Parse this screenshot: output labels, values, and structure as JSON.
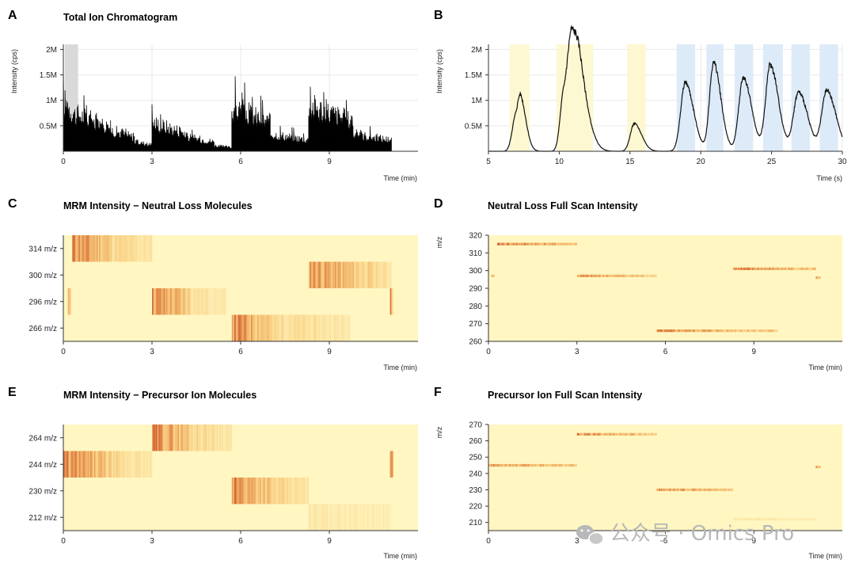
{
  "watermark": "公众号 · Omics Pro",
  "chart_data": [
    {
      "panel": "A",
      "type": "area",
      "title": "Total Ion Chromatogram",
      "xlabel": "Time (min)",
      "ylabel": "Intensity (cps)",
      "xlim": [
        0,
        12
      ],
      "ylim": [
        0,
        2100000
      ],
      "xticks": [
        "0",
        "3",
        "6",
        "9"
      ],
      "yticks": [
        "0.5M",
        "1M",
        "1.5M",
        "2M"
      ],
      "grid": true,
      "highlight_regions": [
        {
          "x": [
            0.05,
            0.5
          ],
          "color": "#d9d9d9"
        }
      ],
      "segments": [
        {
          "x": [
            0.0,
            0.5
          ],
          "level": 1300000
        },
        {
          "x": [
            0.5,
            1.6
          ],
          "level": 950000
        },
        {
          "x": [
            1.6,
            2.4
          ],
          "level": 550000
        },
        {
          "x": [
            2.4,
            3.0
          ],
          "level": 250000
        },
        {
          "x": [
            3.0,
            4.1
          ],
          "level": 750000
        },
        {
          "x": [
            4.1,
            5.1
          ],
          "level": 380000
        },
        {
          "x": [
            5.1,
            5.7
          ],
          "level": 150000
        },
        {
          "x": [
            5.7,
            7.0
          ],
          "level": 1150000
        },
        {
          "x": [
            7.0,
            8.3
          ],
          "level": 450000
        },
        {
          "x": [
            8.3,
            9.8
          ],
          "level": 1200000
        },
        {
          "x": [
            9.8,
            11.1
          ],
          "level": 450000
        }
      ]
    },
    {
      "panel": "B",
      "type": "line",
      "title": "",
      "xlabel": "Time (s)",
      "ylabel": "Intensity (cps)",
      "xlim": [
        5,
        30
      ],
      "ylim": [
        0,
        2100000
      ],
      "xticks": [
        "5",
        "10",
        "15",
        "20",
        "25",
        "30"
      ],
      "yticks": [
        "0.5M",
        "1M",
        "1.5M",
        "2M"
      ],
      "grid": true,
      "highlight_regions": [
        {
          "x": [
            6.5,
            7.9
          ],
          "color": "#fdf7d2"
        },
        {
          "x": [
            9.8,
            12.4
          ],
          "color": "#fdf7d2"
        },
        {
          "x": [
            14.8,
            16.1
          ],
          "color": "#fdf7d2"
        },
        {
          "x": [
            18.3,
            19.6
          ],
          "color": "#ddeaf8"
        },
        {
          "x": [
            20.4,
            21.6
          ],
          "color": "#ddeaf8"
        },
        {
          "x": [
            22.4,
            23.7
          ],
          "color": "#ddeaf8"
        },
        {
          "x": [
            24.4,
            25.8
          ],
          "color": "#ddeaf8"
        },
        {
          "x": [
            26.4,
            27.7
          ],
          "color": "#ddeaf8"
        },
        {
          "x": [
            28.4,
            29.7
          ],
          "color": "#ddeaf8"
        }
      ],
      "peaks": [
        {
          "x": 6.9,
          "y": 650000,
          "w": 0.35
        },
        {
          "x": 7.3,
          "y": 700000,
          "w": 0.3
        },
        {
          "x": 10.3,
          "y": 1100000,
          "w": 0.35
        },
        {
          "x": 10.9,
          "y": 1800000,
          "w": 0.4
        },
        {
          "x": 11.5,
          "y": 1000000,
          "w": 0.5
        },
        {
          "x": 15.3,
          "y": 560000,
          "w": 0.4
        },
        {
          "x": 18.9,
          "y": 1400000,
          "w": 0.45
        },
        {
          "x": 20.9,
          "y": 1800000,
          "w": 0.4
        },
        {
          "x": 23.0,
          "y": 1500000,
          "w": 0.45
        },
        {
          "x": 24.9,
          "y": 1750000,
          "w": 0.45
        },
        {
          "x": 26.9,
          "y": 1200000,
          "w": 0.5
        },
        {
          "x": 28.9,
          "y": 1230000,
          "w": 0.5
        }
      ]
    },
    {
      "panel": "C",
      "type": "heatmap",
      "title": "MRM Intensity − Neutral Loss Molecules",
      "xlabel": "Time (min)",
      "xlim": [
        0,
        12
      ],
      "xticks": [
        "0",
        "3",
        "6",
        "9"
      ],
      "rows": [
        "314 m/z",
        "300 m/z",
        "296 m/z",
        "266 m/z"
      ],
      "bands": [
        {
          "row": 0,
          "x": [
            0.3,
            1.6
          ],
          "intensity": 0.95
        },
        {
          "row": 0,
          "x": [
            1.6,
            3.0
          ],
          "intensity": 0.45
        },
        {
          "row": 1,
          "x": [
            8.3,
            10.0
          ],
          "intensity": 0.9
        },
        {
          "row": 1,
          "x": [
            10.0,
            11.1
          ],
          "intensity": 0.5
        },
        {
          "row": 2,
          "x": [
            0.15,
            0.25
          ],
          "intensity": 1.0
        },
        {
          "row": 2,
          "x": [
            3.0,
            4.3
          ],
          "intensity": 0.9
        },
        {
          "row": 2,
          "x": [
            4.3,
            5.5
          ],
          "intensity": 0.35
        },
        {
          "row": 2,
          "x": [
            11.05,
            11.15
          ],
          "intensity": 0.9
        },
        {
          "row": 3,
          "x": [
            5.7,
            7.0
          ],
          "intensity": 0.95
        },
        {
          "row": 3,
          "x": [
            7.0,
            9.7
          ],
          "intensity": 0.4
        }
      ]
    },
    {
      "panel": "D",
      "type": "heatmap",
      "title": "Neutral Loss Full Scan Intensity",
      "xlabel": "Time (min)",
      "ylabel": "m/z",
      "xlim": [
        0,
        12
      ],
      "ylim": [
        260,
        320
      ],
      "xticks": [
        "0",
        "3",
        "6",
        "9"
      ],
      "yticks": [
        "260",
        "270",
        "280",
        "290",
        "300",
        "310",
        "320"
      ],
      "lines": [
        {
          "mz": 315,
          "x": [
            0.3,
            3.0
          ],
          "intensity": 0.95
        },
        {
          "mz": 297,
          "x": [
            3.0,
            5.7
          ],
          "intensity": 0.8
        },
        {
          "mz": 301,
          "x": [
            8.3,
            11.1
          ],
          "intensity": 0.9
        },
        {
          "mz": 266,
          "x": [
            5.7,
            9.8
          ],
          "intensity": 0.85
        },
        {
          "mz": 297,
          "x": [
            0.1,
            0.2
          ],
          "intensity": 0.9
        },
        {
          "mz": 296,
          "x": [
            11.1,
            11.25
          ],
          "intensity": 0.9
        }
      ]
    },
    {
      "panel": "E",
      "type": "heatmap",
      "title": "MRM Intensity − Precursor Ion Molecules",
      "xlabel": "Time (min)",
      "xlim": [
        0,
        12
      ],
      "xticks": [
        "0",
        "3",
        "6",
        "9"
      ],
      "rows": [
        "264 m/z",
        "244 m/z",
        "230 m/z",
        "212 m/z"
      ],
      "bands": [
        {
          "row": 0,
          "x": [
            3.0,
            4.3
          ],
          "intensity": 0.95
        },
        {
          "row": 0,
          "x": [
            4.3,
            5.7
          ],
          "intensity": 0.45
        },
        {
          "row": 1,
          "x": [
            0.0,
            1.6
          ],
          "intensity": 0.9
        },
        {
          "row": 1,
          "x": [
            1.6,
            3.0
          ],
          "intensity": 0.4
        },
        {
          "row": 1,
          "x": [
            11.05,
            11.15
          ],
          "intensity": 0.9
        },
        {
          "row": 2,
          "x": [
            5.7,
            7.0
          ],
          "intensity": 0.95
        },
        {
          "row": 2,
          "x": [
            7.0,
            8.3
          ],
          "intensity": 0.45
        },
        {
          "row": 3,
          "x": [
            8.3,
            11.1
          ],
          "intensity": 0.25
        }
      ]
    },
    {
      "panel": "F",
      "type": "heatmap",
      "title": "Precursor Ion Full Scan Intensity",
      "xlabel": "Time (min)",
      "ylabel": "m/z",
      "xlim": [
        0,
        12
      ],
      "ylim": [
        205,
        270
      ],
      "xticks": [
        "0",
        "3",
        "6",
        "9"
      ],
      "yticks": [
        "210",
        "220",
        "230",
        "240",
        "250",
        "260",
        "270"
      ],
      "lines": [
        {
          "mz": 245,
          "x": [
            0.0,
            3.0
          ],
          "intensity": 0.85
        },
        {
          "mz": 264,
          "x": [
            3.0,
            5.7
          ],
          "intensity": 0.85
        },
        {
          "mz": 230,
          "x": [
            5.7,
            8.3
          ],
          "intensity": 0.85
        },
        {
          "mz": 212,
          "x": [
            8.3,
            11.1
          ],
          "intensity": 0.25
        },
        {
          "mz": 244,
          "x": [
            11.1,
            11.25
          ],
          "intensity": 0.9
        }
      ]
    }
  ]
}
